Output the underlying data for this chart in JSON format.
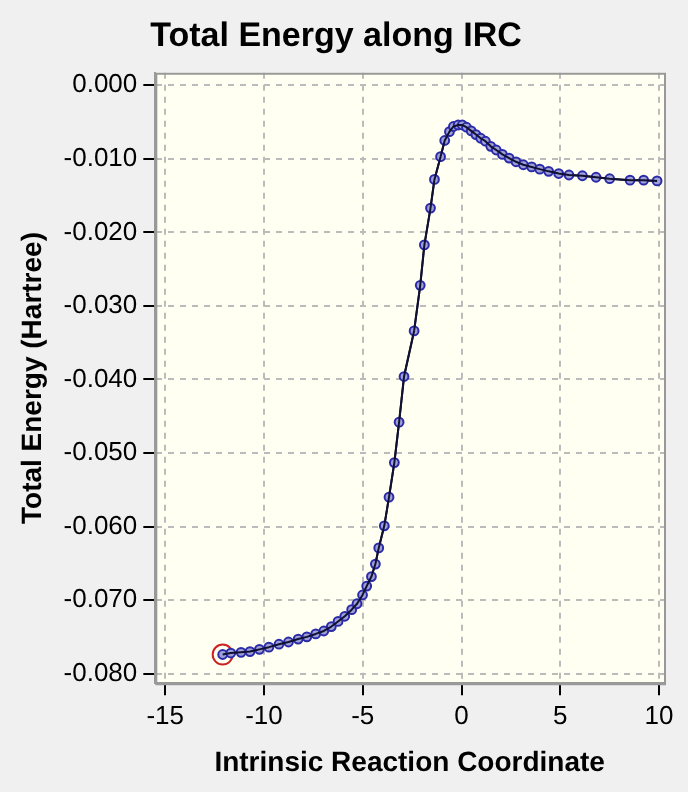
{
  "chart_data": {
    "type": "line",
    "title": "Total Energy along IRC",
    "xlabel": "Intrinsic Reaction Coordinate",
    "ylabel": "Total Energy (Hartree)",
    "xlim": [
      -15.5,
      10.25
    ],
    "xticks": [
      -15,
      -10,
      -5,
      0,
      5,
      10
    ],
    "ylim": [
      -0.0813,
      0.0017
    ],
    "yticks": [
      {
        "value": 0,
        "label": "0.000"
      },
      {
        "value": -0.01,
        "label": "-0.010"
      },
      {
        "value": -0.02,
        "label": "-0.020"
      },
      {
        "value": -0.03,
        "label": "-0.030"
      },
      {
        "value": -0.04,
        "label": "-0.040"
      },
      {
        "value": -0.05,
        "label": "-0.050"
      },
      {
        "value": -0.06,
        "label": "-0.060"
      },
      {
        "value": -0.07,
        "label": "-0.070"
      },
      {
        "value": -0.08,
        "label": "-0.080"
      }
    ],
    "grid": true,
    "marker": "circle",
    "line_style": "solid",
    "series": [
      {
        "color": "#2b2ba8",
        "x": [
          -12.09,
          -11.68,
          -11.16,
          -10.71,
          -10.23,
          -9.75,
          -9.24,
          -8.76,
          -8.27,
          -7.83,
          -7.38,
          -6.97,
          -6.59,
          -6.25,
          -5.91,
          -5.56,
          -5.29,
          -5.01,
          -4.8,
          -4.56,
          -4.36,
          -4.19,
          -3.91,
          -3.67,
          -3.4,
          -3.16,
          -2.91,
          -2.4,
          -2.09,
          -1.88,
          -1.57,
          -1.37,
          -1.06,
          -0.85,
          -0.61,
          -0.41,
          -0.17,
          0.04,
          0.25,
          0.49,
          0.73,
          0.97,
          1.21,
          1.48,
          1.76,
          2.07,
          2.41,
          2.76,
          3.13,
          3.55,
          3.96,
          4.41,
          4.92,
          5.44,
          6.12,
          6.81,
          7.5,
          8.53,
          9.22,
          9.9
        ],
        "values": [
          -0.0774,
          -0.0772,
          -0.0771,
          -0.077,
          -0.0767,
          -0.0764,
          -0.076,
          -0.0757,
          -0.0753,
          -0.075,
          -0.0746,
          -0.0742,
          -0.0736,
          -0.0729,
          -0.0722,
          -0.0713,
          -0.0705,
          -0.0693,
          -0.0681,
          -0.0668,
          -0.0651,
          -0.0629,
          -0.0599,
          -0.056,
          -0.0513,
          -0.0458,
          -0.0396,
          -0.0334,
          -0.0272,
          -0.0217,
          -0.0167,
          -0.0128,
          -0.0097,
          -0.0075,
          -0.0063,
          -0.0056,
          -0.0054,
          -0.0054,
          -0.0057,
          -0.0062,
          -0.0067,
          -0.0072,
          -0.0076,
          -0.0083,
          -0.0088,
          -0.0094,
          -0.0099,
          -0.0104,
          -0.0108,
          -0.0111,
          -0.0114,
          -0.0117,
          -0.012,
          -0.0122,
          -0.0123,
          -0.0125,
          -0.0127,
          -0.0129,
          -0.0129,
          -0.013
        ]
      },
      {
        "type": "scatter",
        "color": "#cc2222",
        "x": [
          -12.09
        ],
        "values": [
          -0.0774
        ]
      }
    ]
  }
}
